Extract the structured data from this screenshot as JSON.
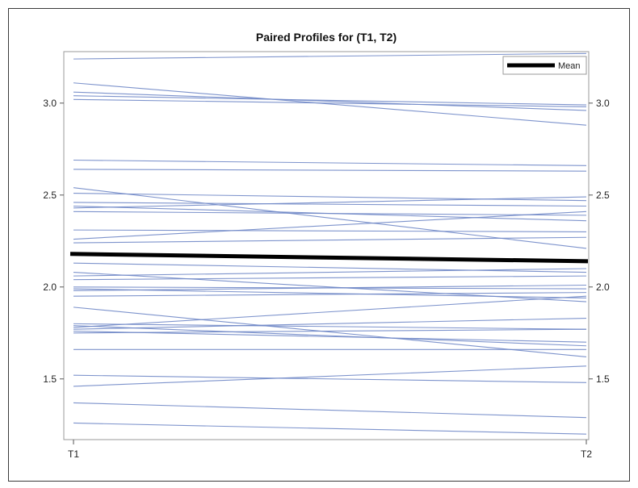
{
  "chart_data": {
    "type": "line",
    "title": "Paired Profiles for (T1, T2)",
    "categories": [
      "T1",
      "T2"
    ],
    "ylim": [
      1.17,
      3.28
    ],
    "yticks": [
      1.5,
      2.0,
      2.5,
      3.0
    ],
    "ytick_labels": [
      "1.5",
      "2.0",
      "2.5",
      "3.0"
    ],
    "legend": {
      "label": "Mean",
      "position": "top-right"
    },
    "mean": {
      "name": "Mean",
      "color": "#000000",
      "values": [
        2.18,
        2.14
      ]
    },
    "profile_color": "#6f87c7",
    "profiles": [
      [
        3.24,
        3.27
      ],
      [
        3.11,
        2.88
      ],
      [
        3.06,
        2.96
      ],
      [
        3.04,
        2.99
      ],
      [
        3.02,
        2.98
      ],
      [
        2.69,
        2.66
      ],
      [
        2.64,
        2.63
      ],
      [
        2.54,
        2.21
      ],
      [
        2.51,
        2.47
      ],
      [
        2.46,
        2.44
      ],
      [
        2.44,
        2.36
      ],
      [
        2.43,
        2.49
      ],
      [
        2.41,
        2.39
      ],
      [
        2.31,
        2.3
      ],
      [
        2.26,
        2.41
      ],
      [
        2.24,
        2.27
      ],
      [
        2.13,
        2.08
      ],
      [
        2.08,
        1.92
      ],
      [
        2.06,
        2.1
      ],
      [
        2.04,
        2.06
      ],
      [
        2.0,
        1.99
      ],
      [
        1.99,
        1.94
      ],
      [
        1.98,
        2.01
      ],
      [
        1.95,
        1.97
      ],
      [
        1.89,
        1.62
      ],
      [
        1.8,
        1.77
      ],
      [
        1.79,
        1.68
      ],
      [
        1.78,
        1.95
      ],
      [
        1.77,
        1.83
      ],
      [
        1.76,
        1.7
      ],
      [
        1.75,
        1.77
      ],
      [
        1.66,
        1.66
      ],
      [
        1.52,
        1.48
      ],
      [
        1.46,
        1.57
      ],
      [
        1.37,
        1.29
      ],
      [
        1.26,
        1.2
      ]
    ]
  }
}
